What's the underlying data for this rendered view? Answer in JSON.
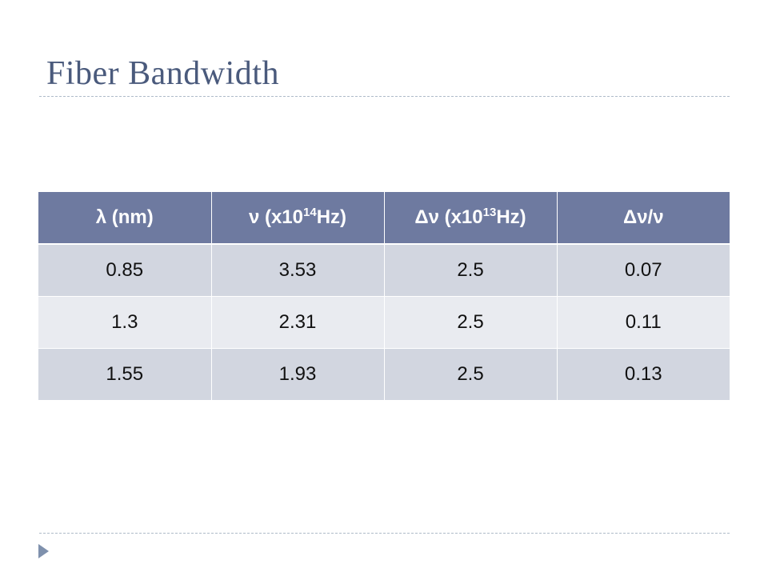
{
  "slide": {
    "title": "Fiber Bandwidth"
  },
  "table": {
    "headers": [
      {
        "main": "λ (nm)",
        "sup": "",
        "tail": ""
      },
      {
        "main": "ν (x10",
        "sup": "14",
        "tail": "Hz)"
      },
      {
        "main": "Δν (x10",
        "sup": "13",
        "tail": "Hz)"
      },
      {
        "main": "Δν/ν",
        "sup": "",
        "tail": ""
      }
    ],
    "rows": [
      [
        "0.85",
        "3.53",
        "2.5",
        "0.07"
      ],
      [
        "1.3",
        "2.31",
        "2.5",
        "0.11"
      ],
      [
        "1.55",
        "1.93",
        "2.5",
        "0.13"
      ]
    ]
  },
  "colors": {
    "title": "#4a5a7c",
    "header_bg": "#6e7aa0",
    "row_odd": "#d2d6e0",
    "row_even": "#e9ebf0",
    "bullet": "#7f91ad"
  },
  "icons": {
    "footer_bullet": "triangle-right-icon"
  }
}
